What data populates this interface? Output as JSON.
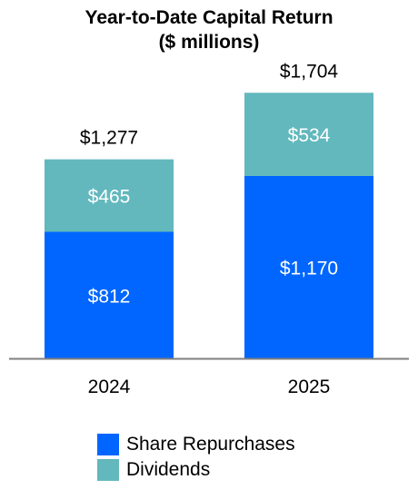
{
  "chart_data": {
    "type": "bar",
    "stacked": true,
    "title": "Year-to-Date Capital Return",
    "subtitle": "($ millions)",
    "categories": [
      "2024",
      "2025"
    ],
    "series": [
      {
        "name": "Share Repurchases",
        "color": "#0066ff",
        "values": [
          812,
          1170
        ],
        "labels": [
          "$812",
          "$1,170"
        ]
      },
      {
        "name": "Dividends",
        "color": "#62b8bd",
        "values": [
          465,
          534
        ],
        "labels": [
          "$465",
          "$534"
        ]
      }
    ],
    "totals": [
      1277,
      1704
    ],
    "total_labels": [
      "$1,277",
      "$1,704"
    ],
    "ylim": [
      0,
      1950
    ],
    "grid": false,
    "legend_position": "bottom"
  }
}
